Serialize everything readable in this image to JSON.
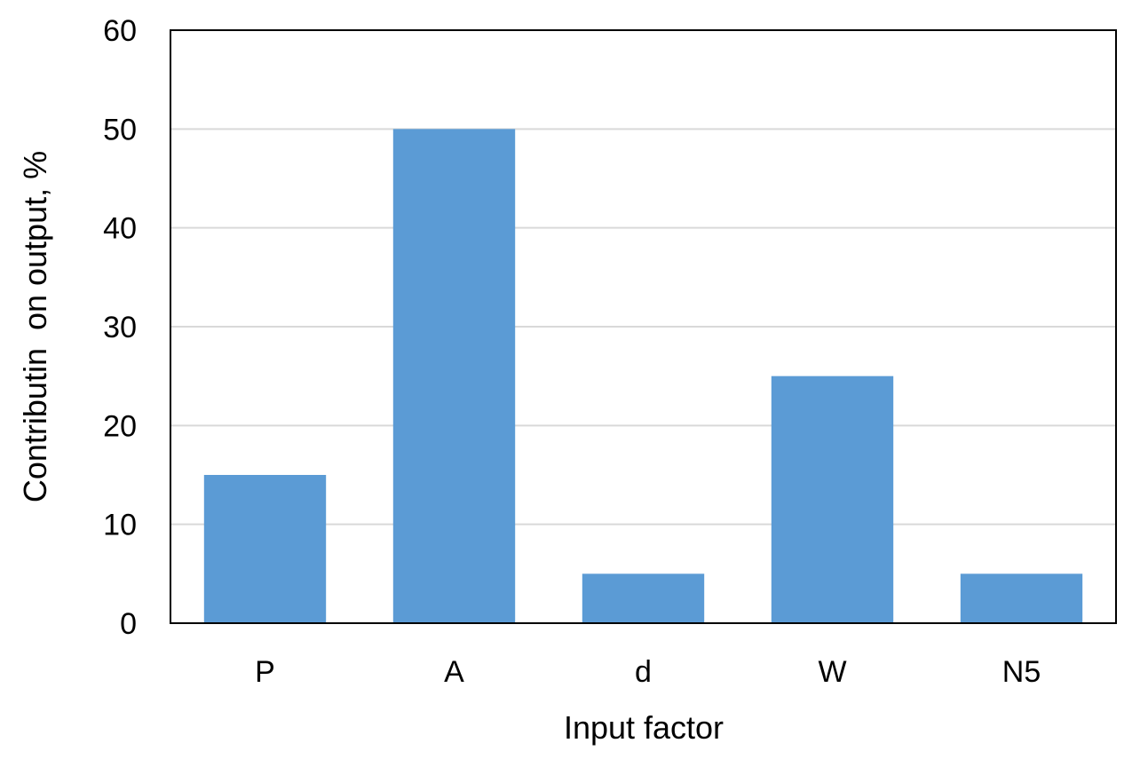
{
  "chart_data": {
    "type": "bar",
    "categories": [
      "P",
      "A",
      "d",
      "W",
      "N5"
    ],
    "values": [
      15,
      50,
      5,
      25,
      5
    ],
    "title": "",
    "xlabel": "Input factor",
    "ylabel": "Contributin  on output, %",
    "ylim": [
      0,
      60
    ],
    "yticks": [
      0,
      10,
      20,
      30,
      40,
      50,
      60
    ],
    "grid": true,
    "legend": "none",
    "colors": {
      "bar": "#5b9bd5",
      "grid": "#d9d9d9",
      "frame": "#000000",
      "text": "#000000"
    }
  }
}
